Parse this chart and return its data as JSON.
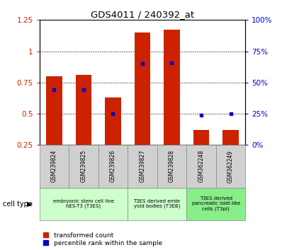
{
  "title": "GDS4011 / 240392_at",
  "samples": [
    "GSM239824",
    "GSM239825",
    "GSM239826",
    "GSM239827",
    "GSM239828",
    "GSM362248",
    "GSM362249"
  ],
  "transformed_count": [
    0.8,
    0.81,
    0.63,
    1.15,
    1.17,
    0.37,
    0.37
  ],
  "percentile_rank_left": [
    0.69,
    0.69,
    0.5,
    0.9,
    0.91,
    0.49,
    0.5
  ],
  "bar_color": "#cc2200",
  "dot_color": "#0000cc",
  "ylim_left": [
    0.25,
    1.25
  ],
  "ylim_right": [
    0,
    100
  ],
  "yticks_left": [
    0.25,
    0.5,
    0.75,
    1.0,
    1.25
  ],
  "ytick_labels_left": [
    "0.25",
    "0.5",
    "0.75",
    "1",
    "1.25"
  ],
  "yticks_right": [
    0,
    25,
    50,
    75,
    100
  ],
  "ytick_labels_right": [
    "0%",
    "25%",
    "50%",
    "75%",
    "100%"
  ],
  "groups": [
    {
      "label": "embryonic stem cell line\nhES-T3 (T3ES)",
      "start": 0,
      "end": 2,
      "color": "#ccffcc"
    },
    {
      "label": "T3ES derived embr\nyoid bodies (T3EB)",
      "start": 3,
      "end": 4,
      "color": "#ccffcc"
    },
    {
      "label": "T3ES derived\npancreatic islet-like\ncells (T3pi)",
      "start": 5,
      "end": 6,
      "color": "#88ee88"
    }
  ],
  "legend_items": [
    {
      "color": "#cc2200",
      "label": "transformed count"
    },
    {
      "color": "#0000cc",
      "label": "percentile rank within the sample"
    }
  ],
  "cell_type_label": "cell type",
  "background_color": "#ffffff",
  "plot_bg": "#ffffff",
  "bar_bottom": 0.25
}
